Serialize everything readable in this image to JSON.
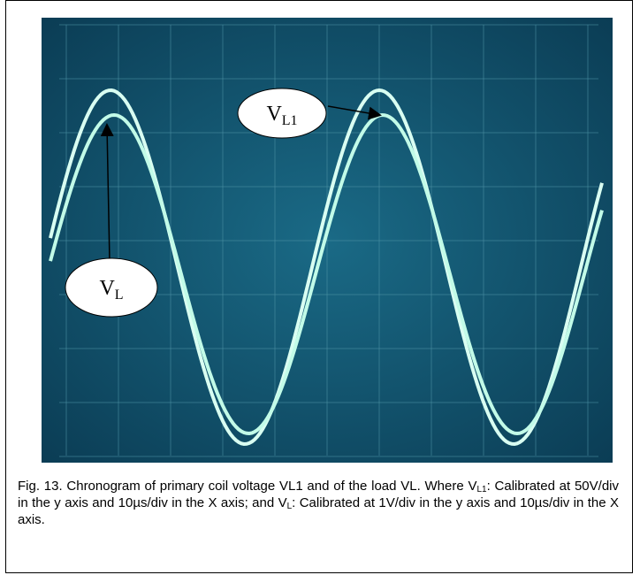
{
  "figure": {
    "labels": {
      "vl1": {
        "main": "V",
        "sub": "L1"
      },
      "vl": {
        "main": "V",
        "sub": "L"
      }
    },
    "caption": [
      {
        "text": "Fig. 13. Chronogram of primary coil voltage VL1 and of the load VL. Where V"
      },
      {
        "text": "L1",
        "sub": true
      },
      {
        "text": ": Calibrated at 50V/div in the y axis and 10µs/div in the X axis; and V"
      },
      {
        "text": "L",
        "sub": true
      },
      {
        "text": ": Calibrated at 1V/div in the y axis and 10µs/div in the X axis."
      }
    ]
  }
}
